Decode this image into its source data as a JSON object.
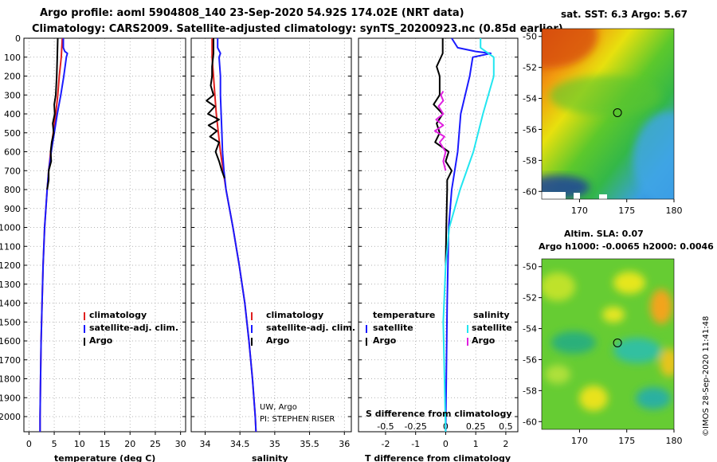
{
  "title_line1": "Argo profile: aoml 5904808_140 23-Sep-2020 54.92S 174.02E (NRT data)",
  "title_line2": "Climatology: CARS2009. Satellite-adjusted climatology: synTS_20200923.nc (0.85d earlier)",
  "colors": {
    "climatology": "#e02020",
    "satellite": "#1a1aff",
    "argo": "#000000",
    "sat_salinity": "#22e6f0",
    "argo_salinity": "#e020e0",
    "grid": "#9a9a9a"
  },
  "chart_data": [
    {
      "type": "line",
      "name": "temperature-profile",
      "xlabel": "temperature (deg C)",
      "ylabel": "depth",
      "xlim": [
        -1,
        31
      ],
      "ylim": [
        2080,
        0
      ],
      "xticks": [
        0,
        5,
        10,
        15,
        20,
        25,
        30
      ],
      "xtick_labels": [
        "0",
        "5",
        "10",
        "15",
        "20",
        "25",
        "30"
      ],
      "yticks": [
        0,
        100,
        200,
        300,
        400,
        500,
        600,
        700,
        800,
        900,
        1000,
        1100,
        1200,
        1300,
        1400,
        1500,
        1600,
        1700,
        1800,
        1900,
        2000
      ],
      "series": [
        {
          "name": "climatology",
          "color_key": "climatology",
          "depth": [
            0,
            100,
            200,
            300,
            400,
            500,
            600,
            700,
            800,
            1000,
            1200,
            1400,
            1600,
            1800,
            2000,
            2080
          ],
          "values": [
            6.6,
            6.4,
            6.0,
            5.7,
            5.3,
            4.8,
            4.3,
            3.9,
            3.6,
            3.1,
            2.8,
            2.6,
            2.4,
            2.3,
            2.2,
            2.2
          ]
        },
        {
          "name": "satellite-adj. clim.",
          "color_key": "satellite",
          "depth": [
            0,
            50,
            70,
            80,
            100,
            200,
            300,
            400,
            500,
            600,
            700,
            800,
            1000,
            1200,
            1400,
            1600,
            1800,
            2000,
            2080
          ],
          "values": [
            6.8,
            6.8,
            7.1,
            7.6,
            7.4,
            6.9,
            6.3,
            5.6,
            5.0,
            4.4,
            3.9,
            3.6,
            3.1,
            2.8,
            2.6,
            2.4,
            2.3,
            2.2,
            2.2
          ]
        },
        {
          "name": "Argo",
          "color_key": "argo",
          "depth": [
            0,
            100,
            200,
            300,
            350,
            400,
            450,
            500,
            550,
            600,
            650,
            700,
            750,
            800
          ],
          "values": [
            5.7,
            5.6,
            5.5,
            5.3,
            5.0,
            5.1,
            4.7,
            4.9,
            4.5,
            4.3,
            4.4,
            3.9,
            3.9,
            3.6
          ]
        }
      ],
      "legend": [
        {
          "label": "climatology",
          "color_key": "climatology"
        },
        {
          "label": "satellite-adj. clim.",
          "color_key": "satellite"
        },
        {
          "label": "Argo",
          "color_key": "argo"
        }
      ]
    },
    {
      "type": "line",
      "name": "salinity-profile",
      "xlabel": "salinity",
      "ylabel": "depth",
      "xlim": [
        33.8,
        36.1
      ],
      "ylim": [
        2080,
        0
      ],
      "xticks": [
        34,
        34.5,
        35,
        35.5,
        36
      ],
      "xtick_labels": [
        "34",
        "34.5",
        "35",
        "35.5",
        "36"
      ],
      "series": [
        {
          "name": "climatology",
          "color_key": "climatology",
          "depth": [
            0,
            100,
            200,
            300,
            400,
            500,
            600,
            700,
            800,
            1000,
            1200,
            1400,
            1600,
            1800,
            2000,
            2080
          ],
          "values": [
            34.1,
            34.1,
            34.12,
            34.14,
            34.16,
            34.19,
            34.22,
            34.26,
            34.3,
            34.4,
            34.49,
            34.57,
            34.63,
            34.68,
            34.72,
            34.73
          ]
        },
        {
          "name": "satellite-adj. clim.",
          "color_key": "satellite",
          "depth": [
            0,
            50,
            80,
            100,
            200,
            300,
            400,
            500,
            600,
            700,
            800,
            1000,
            1200,
            1400,
            1600,
            1800,
            2000,
            2080
          ],
          "values": [
            34.18,
            34.18,
            34.22,
            34.2,
            34.22,
            34.22,
            34.23,
            34.24,
            34.25,
            34.27,
            34.3,
            34.4,
            34.49,
            34.57,
            34.63,
            34.68,
            34.72,
            34.73
          ]
        },
        {
          "name": "Argo",
          "color_key": "argo",
          "depth": [
            0,
            80,
            150,
            200,
            250,
            300,
            330,
            360,
            400,
            430,
            460,
            490,
            520,
            550,
            600,
            650,
            700,
            740
          ],
          "values": [
            34.12,
            34.12,
            34.1,
            34.1,
            34.08,
            34.12,
            34.02,
            34.14,
            34.04,
            34.2,
            34.05,
            34.17,
            34.07,
            34.2,
            34.15,
            34.2,
            34.24,
            34.28
          ]
        }
      ],
      "legend": [
        {
          "label": "climatology",
          "color_key": "climatology"
        },
        {
          "label": "satellite-adj. clim.",
          "color_key": "satellite"
        },
        {
          "label": "Argo",
          "color_key": "argo"
        }
      ],
      "credit_line1": "UW, Argo",
      "credit_line2": "PI: STEPHEN RISER"
    },
    {
      "type": "line",
      "name": "difference-profile",
      "xlabel": "T difference from climatology",
      "xlabel_top": "S difference from climatology",
      "ylabel": "depth",
      "xlim": [
        -2.9,
        2.4
      ],
      "ylim": [
        2080,
        0
      ],
      "xticks": [
        -2,
        -1,
        0,
        1,
        2
      ],
      "xtick_labels": [
        "-2",
        "-1",
        "0",
        "1",
        "2"
      ],
      "xticks_top": [
        -0.5,
        -0.25,
        0,
        0.25,
        0.5
      ],
      "xtick_labels_top": [
        "-0.5",
        "-0.25",
        "0",
        "0.25",
        "0.5"
      ],
      "series": [
        {
          "name": "satellite (T)",
          "color_key": "satellite",
          "depth": [
            0,
            50,
            70,
            80,
            100,
            200,
            400,
            600,
            800,
            1000,
            1400,
            2080
          ],
          "values": [
            0.2,
            0.4,
            1.0,
            1.5,
            0.9,
            0.8,
            0.5,
            0.4,
            0.2,
            0.1,
            0.05,
            0.0
          ]
        },
        {
          "name": "Argo (T)",
          "color_key": "argo",
          "depth": [
            0,
            80,
            150,
            200,
            300,
            350,
            400,
            450,
            500,
            550,
            600,
            650,
            700,
            750,
            800,
            1000,
            1200
          ],
          "values": [
            -0.1,
            -0.1,
            -0.3,
            -0.2,
            -0.2,
            -0.4,
            -0.1,
            -0.3,
            -0.2,
            -0.35,
            0.1,
            0.0,
            0.2,
            0.05,
            0.05,
            0.02,
            0.0
          ]
        },
        {
          "name": "satellite (S)",
          "color_key": "sat_salinity",
          "depth": [
            0,
            50,
            100,
            200,
            400,
            600,
            800,
            1000,
            1200,
            1500,
            2080
          ],
          "values": [
            0.29,
            0.29,
            0.4,
            0.4,
            0.31,
            0.23,
            0.12,
            0.03,
            0.0,
            -0.02,
            0.0
          ]
        },
        {
          "name": "Argo (S)",
          "color_key": "argo_salinity",
          "depth": [
            280,
            300,
            330,
            360,
            400,
            430,
            460,
            490,
            520,
            550,
            600,
            650,
            700
          ],
          "values": [
            -0.02,
            -0.04,
            -0.02,
            -0.06,
            -0.02,
            -0.08,
            -0.02,
            -0.09,
            -0.01,
            -0.05,
            0.0,
            -0.02,
            0.0
          ]
        }
      ],
      "legend_left_title": "temperature",
      "legend_right_title": "salinity",
      "legend_left": [
        {
          "label": "satellite",
          "color_key": "satellite"
        },
        {
          "label": "Argo",
          "color_key": "argo"
        }
      ],
      "legend_right": [
        {
          "label": "satellite",
          "color_key": "sat_salinity"
        },
        {
          "label": "Argo",
          "color_key": "argo_salinity"
        }
      ]
    },
    {
      "type": "heatmap",
      "name": "sst-map",
      "title": "sat. SST: 6.3 Argo: 5.67",
      "xlim": [
        166,
        180
      ],
      "ylim": [
        -60.5,
        -49.5
      ],
      "xticks": [
        170,
        175,
        180
      ],
      "xtick_labels": [
        "170",
        "175",
        "180"
      ],
      "yticks": [
        -50,
        -52,
        -54,
        -56,
        -58,
        -60
      ],
      "ytick_labels": [
        "-50",
        "-52",
        "-54",
        "-56",
        "-58",
        "-60"
      ],
      "marker": {
        "lon": 174.02,
        "lat": -54.92
      }
    },
    {
      "type": "heatmap",
      "name": "sla-map",
      "title_line1": "Altim. SLA: 0.07",
      "title_line2": "Argo h1000: -0.0065 h2000: 0.0046",
      "xlim": [
        166,
        180
      ],
      "ylim": [
        -60.5,
        -49.5
      ],
      "xticks": [
        170,
        175,
        180
      ],
      "xtick_labels": [
        "170",
        "175",
        "180"
      ],
      "yticks": [
        -50,
        -52,
        -54,
        -56,
        -58,
        -60
      ],
      "ytick_labels": [
        "-50",
        "-52",
        "-54",
        "-56",
        "-58",
        "-60"
      ],
      "marker": {
        "lon": 174.02,
        "lat": -54.92
      }
    }
  ],
  "watermark": "©IMOS 28-Sep-2020 11:41:48"
}
